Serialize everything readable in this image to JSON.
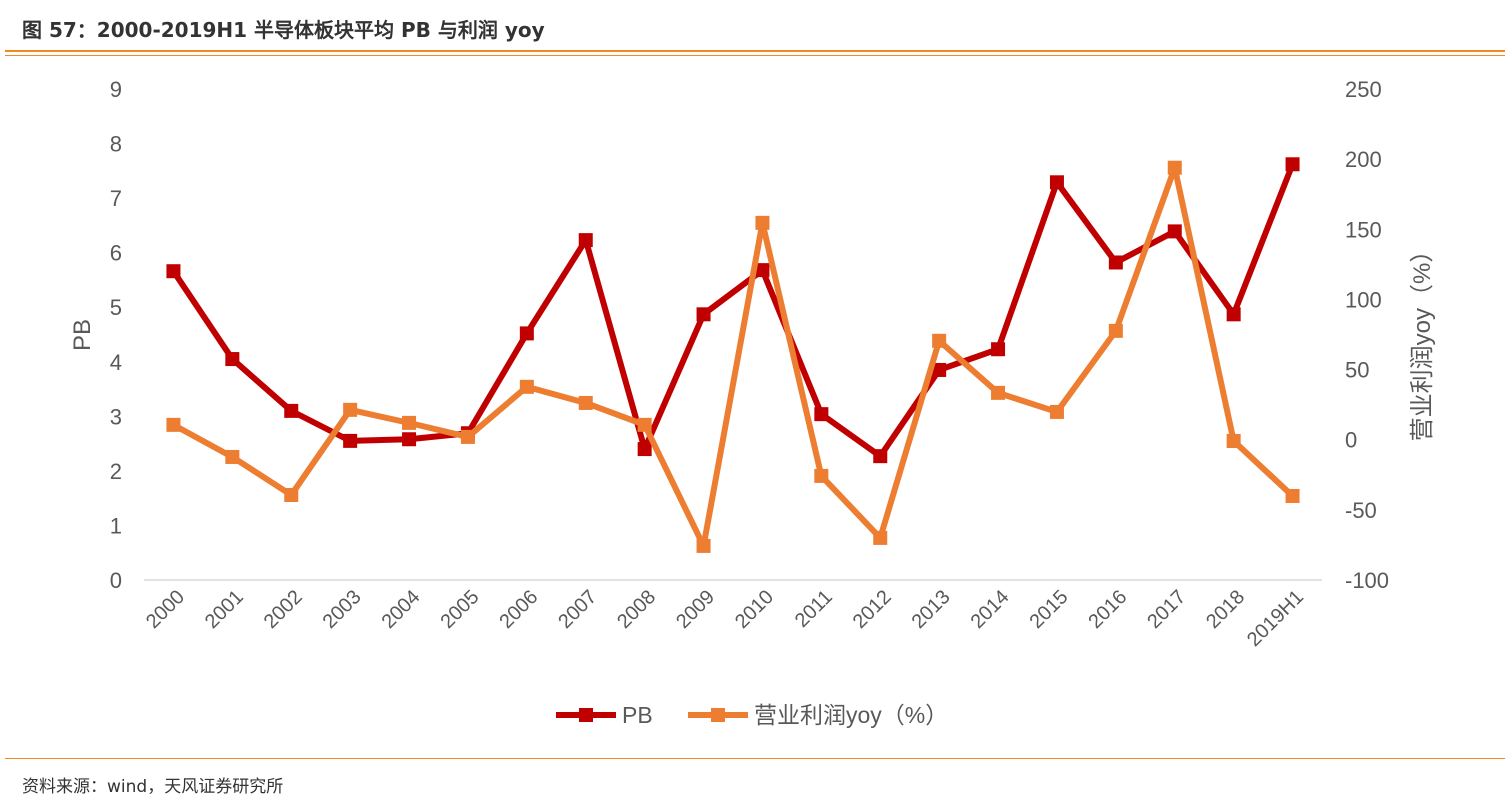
{
  "title": "图 57：2000-2019H1 半导体板块平均 PB 与利润 yoy",
  "source": "资料来源：wind，天风证券研究所",
  "chart_data": {
    "type": "line",
    "categories": [
      "2000",
      "2001",
      "2002",
      "2003",
      "2004",
      "2005",
      "2006",
      "2007",
      "2008",
      "2009",
      "2010",
      "2011",
      "2012",
      "2013",
      "2014",
      "2015",
      "2016",
      "2017",
      "2018",
      "2019H1"
    ],
    "series": [
      {
        "name": "PB",
        "axis": "left",
        "color": "#c00000",
        "values": [
          5.66,
          4.05,
          3.1,
          2.55,
          2.58,
          2.69,
          4.52,
          6.23,
          2.4,
          4.87,
          5.68,
          3.04,
          2.27,
          3.85,
          4.23,
          7.29,
          5.82,
          6.39,
          4.87,
          7.62
        ]
      },
      {
        "name": "营业利润yoy（%）",
        "axis": "right",
        "color": "#ed7d31",
        "values": [
          10.6,
          -12.3,
          -39.4,
          21.3,
          12.0,
          2.0,
          37.7,
          26.2,
          10.6,
          -75.7,
          154.6,
          -25.8,
          -70.0,
          70.5,
          33.4,
          19.8,
          77.6,
          193.9,
          -0.9,
          -40.1
        ]
      }
    ],
    "ylabel": "PB",
    "ylabel_right": "营业利润yoy（%）",
    "ylim": [
      0,
      9
    ],
    "ylim_right": [
      -100,
      250
    ],
    "yticks": [
      0,
      1,
      2,
      3,
      4,
      5,
      6,
      7,
      8,
      9
    ],
    "yticks_right": [
      -100,
      -50,
      0,
      50,
      100,
      150,
      200,
      250
    ],
    "grid": false,
    "legend": "bottom"
  }
}
